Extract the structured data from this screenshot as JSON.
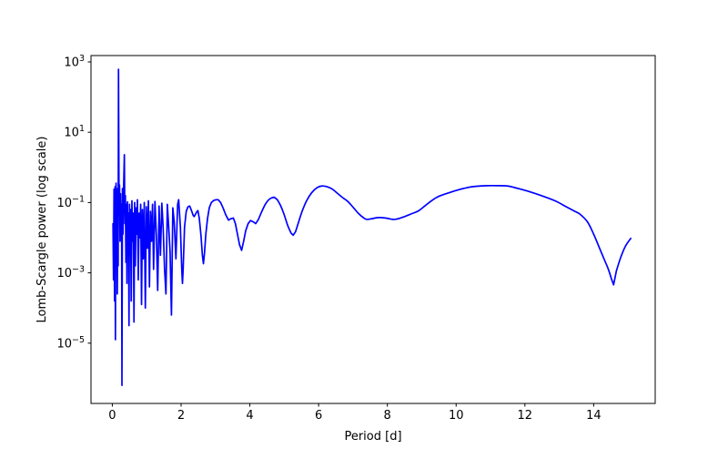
{
  "figure": {
    "background": "#ffffff",
    "title": ""
  },
  "chart_data": {
    "type": "line",
    "title": "",
    "xlabel": "Period [d]",
    "ylabel": "Lomb-Scargle power (log scale)",
    "yscale": "log",
    "y_values_are": "log10_of_power",
    "grid": false,
    "legend": null,
    "line_color": "#0000ff",
    "spine_color": "#000000",
    "xlim": [
      -0.62,
      15.79
    ],
    "ylim_log10": [
      -6.715,
      3.181
    ],
    "x_ticks": [
      0,
      2,
      4,
      6,
      8,
      10,
      12,
      14
    ],
    "y_tick_exponents": [
      3,
      1,
      -1,
      -3,
      -5
    ],
    "main_peak": {
      "period_d": 0.18,
      "log10_power": 2.79
    },
    "series": [
      {
        "name": "lomb-scargle-power",
        "points": [
          [
            0.02,
            -1.6
          ],
          [
            0.035,
            -3.2
          ],
          [
            0.05,
            -0.62
          ],
          [
            0.065,
            -3.8
          ],
          [
            0.08,
            -0.55
          ],
          [
            0.09,
            -4.9
          ],
          [
            0.1,
            -0.85
          ],
          [
            0.11,
            -0.45
          ],
          [
            0.12,
            -2.2
          ],
          [
            0.13,
            -0.6
          ],
          [
            0.145,
            -3.6
          ],
          [
            0.16,
            -0.8
          ],
          [
            0.17,
            -2.8
          ],
          [
            0.18,
            2.79
          ],
          [
            0.195,
            -0.9
          ],
          [
            0.21,
            -0.5
          ],
          [
            0.225,
            -2.1
          ],
          [
            0.24,
            -0.75
          ],
          [
            0.255,
            -1.9
          ],
          [
            0.27,
            -1.05
          ],
          [
            0.28,
            -6.2
          ],
          [
            0.295,
            -0.6
          ],
          [
            0.31,
            -1.9
          ],
          [
            0.325,
            -0.75
          ],
          [
            0.35,
            0.36
          ],
          [
            0.365,
            -1.6
          ],
          [
            0.38,
            -0.8
          ],
          [
            0.395,
            -2.7
          ],
          [
            0.41,
            -1.05
          ],
          [
            0.425,
            -3.3
          ],
          [
            0.44,
            -0.98
          ],
          [
            0.455,
            -2.2
          ],
          [
            0.47,
            -1.3
          ],
          [
            0.485,
            -4.5
          ],
          [
            0.5,
            -1.05
          ],
          [
            0.515,
            -2.5
          ],
          [
            0.53,
            -1.2
          ],
          [
            0.55,
            -3.8
          ],
          [
            0.57,
            -0.95
          ],
          [
            0.59,
            -2.1
          ],
          [
            0.61,
            -1.3
          ],
          [
            0.63,
            -4.4
          ],
          [
            0.65,
            -1.0
          ],
          [
            0.67,
            -2.8
          ],
          [
            0.69,
            -1.15
          ],
          [
            0.71,
            -1.9
          ],
          [
            0.73,
            -0.92
          ],
          [
            0.755,
            -3.2
          ],
          [
            0.78,
            -1.3
          ],
          [
            0.8,
            -2.0
          ],
          [
            0.825,
            -1.05
          ],
          [
            0.85,
            -3.9
          ],
          [
            0.875,
            -1.2
          ],
          [
            0.9,
            -2.6
          ],
          [
            0.93,
            -1.0
          ],
          [
            0.96,
            -4.0
          ],
          [
            0.99,
            -1.12
          ],
          [
            1.02,
            -2.3
          ],
          [
            1.05,
            -0.95
          ],
          [
            1.08,
            -3.4
          ],
          [
            1.11,
            -1.25
          ],
          [
            1.14,
            -2.1
          ],
          [
            1.17,
            -1.05
          ],
          [
            1.2,
            -2.9
          ],
          [
            1.24,
            -0.97
          ],
          [
            1.28,
            -1.9
          ],
          [
            1.32,
            -3.5
          ],
          [
            1.36,
            -1.1
          ],
          [
            1.4,
            -2.5
          ],
          [
            1.44,
            -1.02
          ],
          [
            1.48,
            -1.75
          ],
          [
            1.52,
            -2.9
          ],
          [
            1.56,
            -3.6
          ],
          [
            1.6,
            -1.05
          ],
          [
            1.64,
            -1.7
          ],
          [
            1.68,
            -2.4
          ],
          [
            1.72,
            -4.2
          ],
          [
            1.76,
            -1.15
          ],
          [
            1.8,
            -1.55
          ],
          [
            1.85,
            -2.6
          ],
          [
            1.9,
            -1.05
          ],
          [
            1.93,
            -0.92
          ],
          [
            1.98,
            -1.7
          ],
          [
            2.02,
            -2.9
          ],
          [
            2.04,
            -3.3
          ],
          [
            2.06,
            -2.9
          ],
          [
            2.1,
            -1.7
          ],
          [
            2.15,
            -1.25
          ],
          [
            2.2,
            -1.12
          ],
          [
            2.25,
            -1.1
          ],
          [
            2.3,
            -1.22
          ],
          [
            2.35,
            -1.36
          ],
          [
            2.38,
            -1.4
          ],
          [
            2.42,
            -1.33
          ],
          [
            2.46,
            -1.26
          ],
          [
            2.49,
            -1.23
          ],
          [
            2.53,
            -1.45
          ],
          [
            2.58,
            -1.95
          ],
          [
            2.62,
            -2.5
          ],
          [
            2.65,
            -2.74
          ],
          [
            2.68,
            -2.45
          ],
          [
            2.72,
            -1.9
          ],
          [
            2.77,
            -1.45
          ],
          [
            2.82,
            -1.15
          ],
          [
            2.88,
            -1.0
          ],
          [
            2.95,
            -0.94
          ],
          [
            3.02,
            -0.92
          ],
          [
            3.08,
            -0.92
          ],
          [
            3.15,
            -1.0
          ],
          [
            3.22,
            -1.15
          ],
          [
            3.3,
            -1.35
          ],
          [
            3.38,
            -1.5
          ],
          [
            3.45,
            -1.46
          ],
          [
            3.52,
            -1.44
          ],
          [
            3.58,
            -1.6
          ],
          [
            3.64,
            -1.9
          ],
          [
            3.7,
            -2.2
          ],
          [
            3.76,
            -2.36
          ],
          [
            3.82,
            -2.1
          ],
          [
            3.88,
            -1.8
          ],
          [
            3.95,
            -1.6
          ],
          [
            4.02,
            -1.51
          ],
          [
            4.1,
            -1.55
          ],
          [
            4.17,
            -1.6
          ],
          [
            4.25,
            -1.48
          ],
          [
            4.35,
            -1.25
          ],
          [
            4.45,
            -1.05
          ],
          [
            4.55,
            -0.92
          ],
          [
            4.65,
            -0.86
          ],
          [
            4.71,
            -0.85
          ],
          [
            4.8,
            -0.92
          ],
          [
            4.9,
            -1.1
          ],
          [
            5.0,
            -1.35
          ],
          [
            5.1,
            -1.65
          ],
          [
            5.2,
            -1.87
          ],
          [
            5.26,
            -1.93
          ],
          [
            5.33,
            -1.83
          ],
          [
            5.42,
            -1.55
          ],
          [
            5.52,
            -1.25
          ],
          [
            5.65,
            -0.95
          ],
          [
            5.8,
            -0.72
          ],
          [
            5.95,
            -0.58
          ],
          [
            6.09,
            -0.53
          ],
          [
            6.25,
            -0.55
          ],
          [
            6.4,
            -0.62
          ],
          [
            6.55,
            -0.74
          ],
          [
            6.7,
            -0.86
          ],
          [
            6.85,
            -0.97
          ],
          [
            7.0,
            -1.13
          ],
          [
            7.15,
            -1.3
          ],
          [
            7.3,
            -1.43
          ],
          [
            7.4,
            -1.48
          ],
          [
            7.55,
            -1.46
          ],
          [
            7.7,
            -1.43
          ],
          [
            7.85,
            -1.43
          ],
          [
            8.0,
            -1.45
          ],
          [
            8.1,
            -1.47
          ],
          [
            8.2,
            -1.48
          ],
          [
            8.35,
            -1.45
          ],
          [
            8.5,
            -1.4
          ],
          [
            8.7,
            -1.32
          ],
          [
            8.9,
            -1.24
          ],
          [
            9.15,
            -1.05
          ],
          [
            9.44,
            -0.85
          ],
          [
            9.8,
            -0.72
          ],
          [
            10.1,
            -0.63
          ],
          [
            10.4,
            -0.56
          ],
          [
            10.7,
            -0.53
          ],
          [
            10.9,
            -0.52
          ],
          [
            11.2,
            -0.52
          ],
          [
            11.5,
            -0.53
          ],
          [
            11.8,
            -0.6
          ],
          [
            12.1,
            -0.68
          ],
          [
            12.5,
            -0.81
          ],
          [
            12.9,
            -0.96
          ],
          [
            13.2,
            -1.12
          ],
          [
            13.45,
            -1.25
          ],
          [
            13.6,
            -1.33
          ],
          [
            13.82,
            -1.55
          ],
          [
            14.0,
            -1.9
          ],
          [
            14.15,
            -2.25
          ],
          [
            14.3,
            -2.6
          ],
          [
            14.42,
            -2.88
          ],
          [
            14.52,
            -3.18
          ],
          [
            14.58,
            -3.34
          ],
          [
            14.66,
            -2.95
          ],
          [
            14.78,
            -2.58
          ],
          [
            14.92,
            -2.25
          ],
          [
            15.08,
            -2.02
          ]
        ]
      }
    ]
  }
}
